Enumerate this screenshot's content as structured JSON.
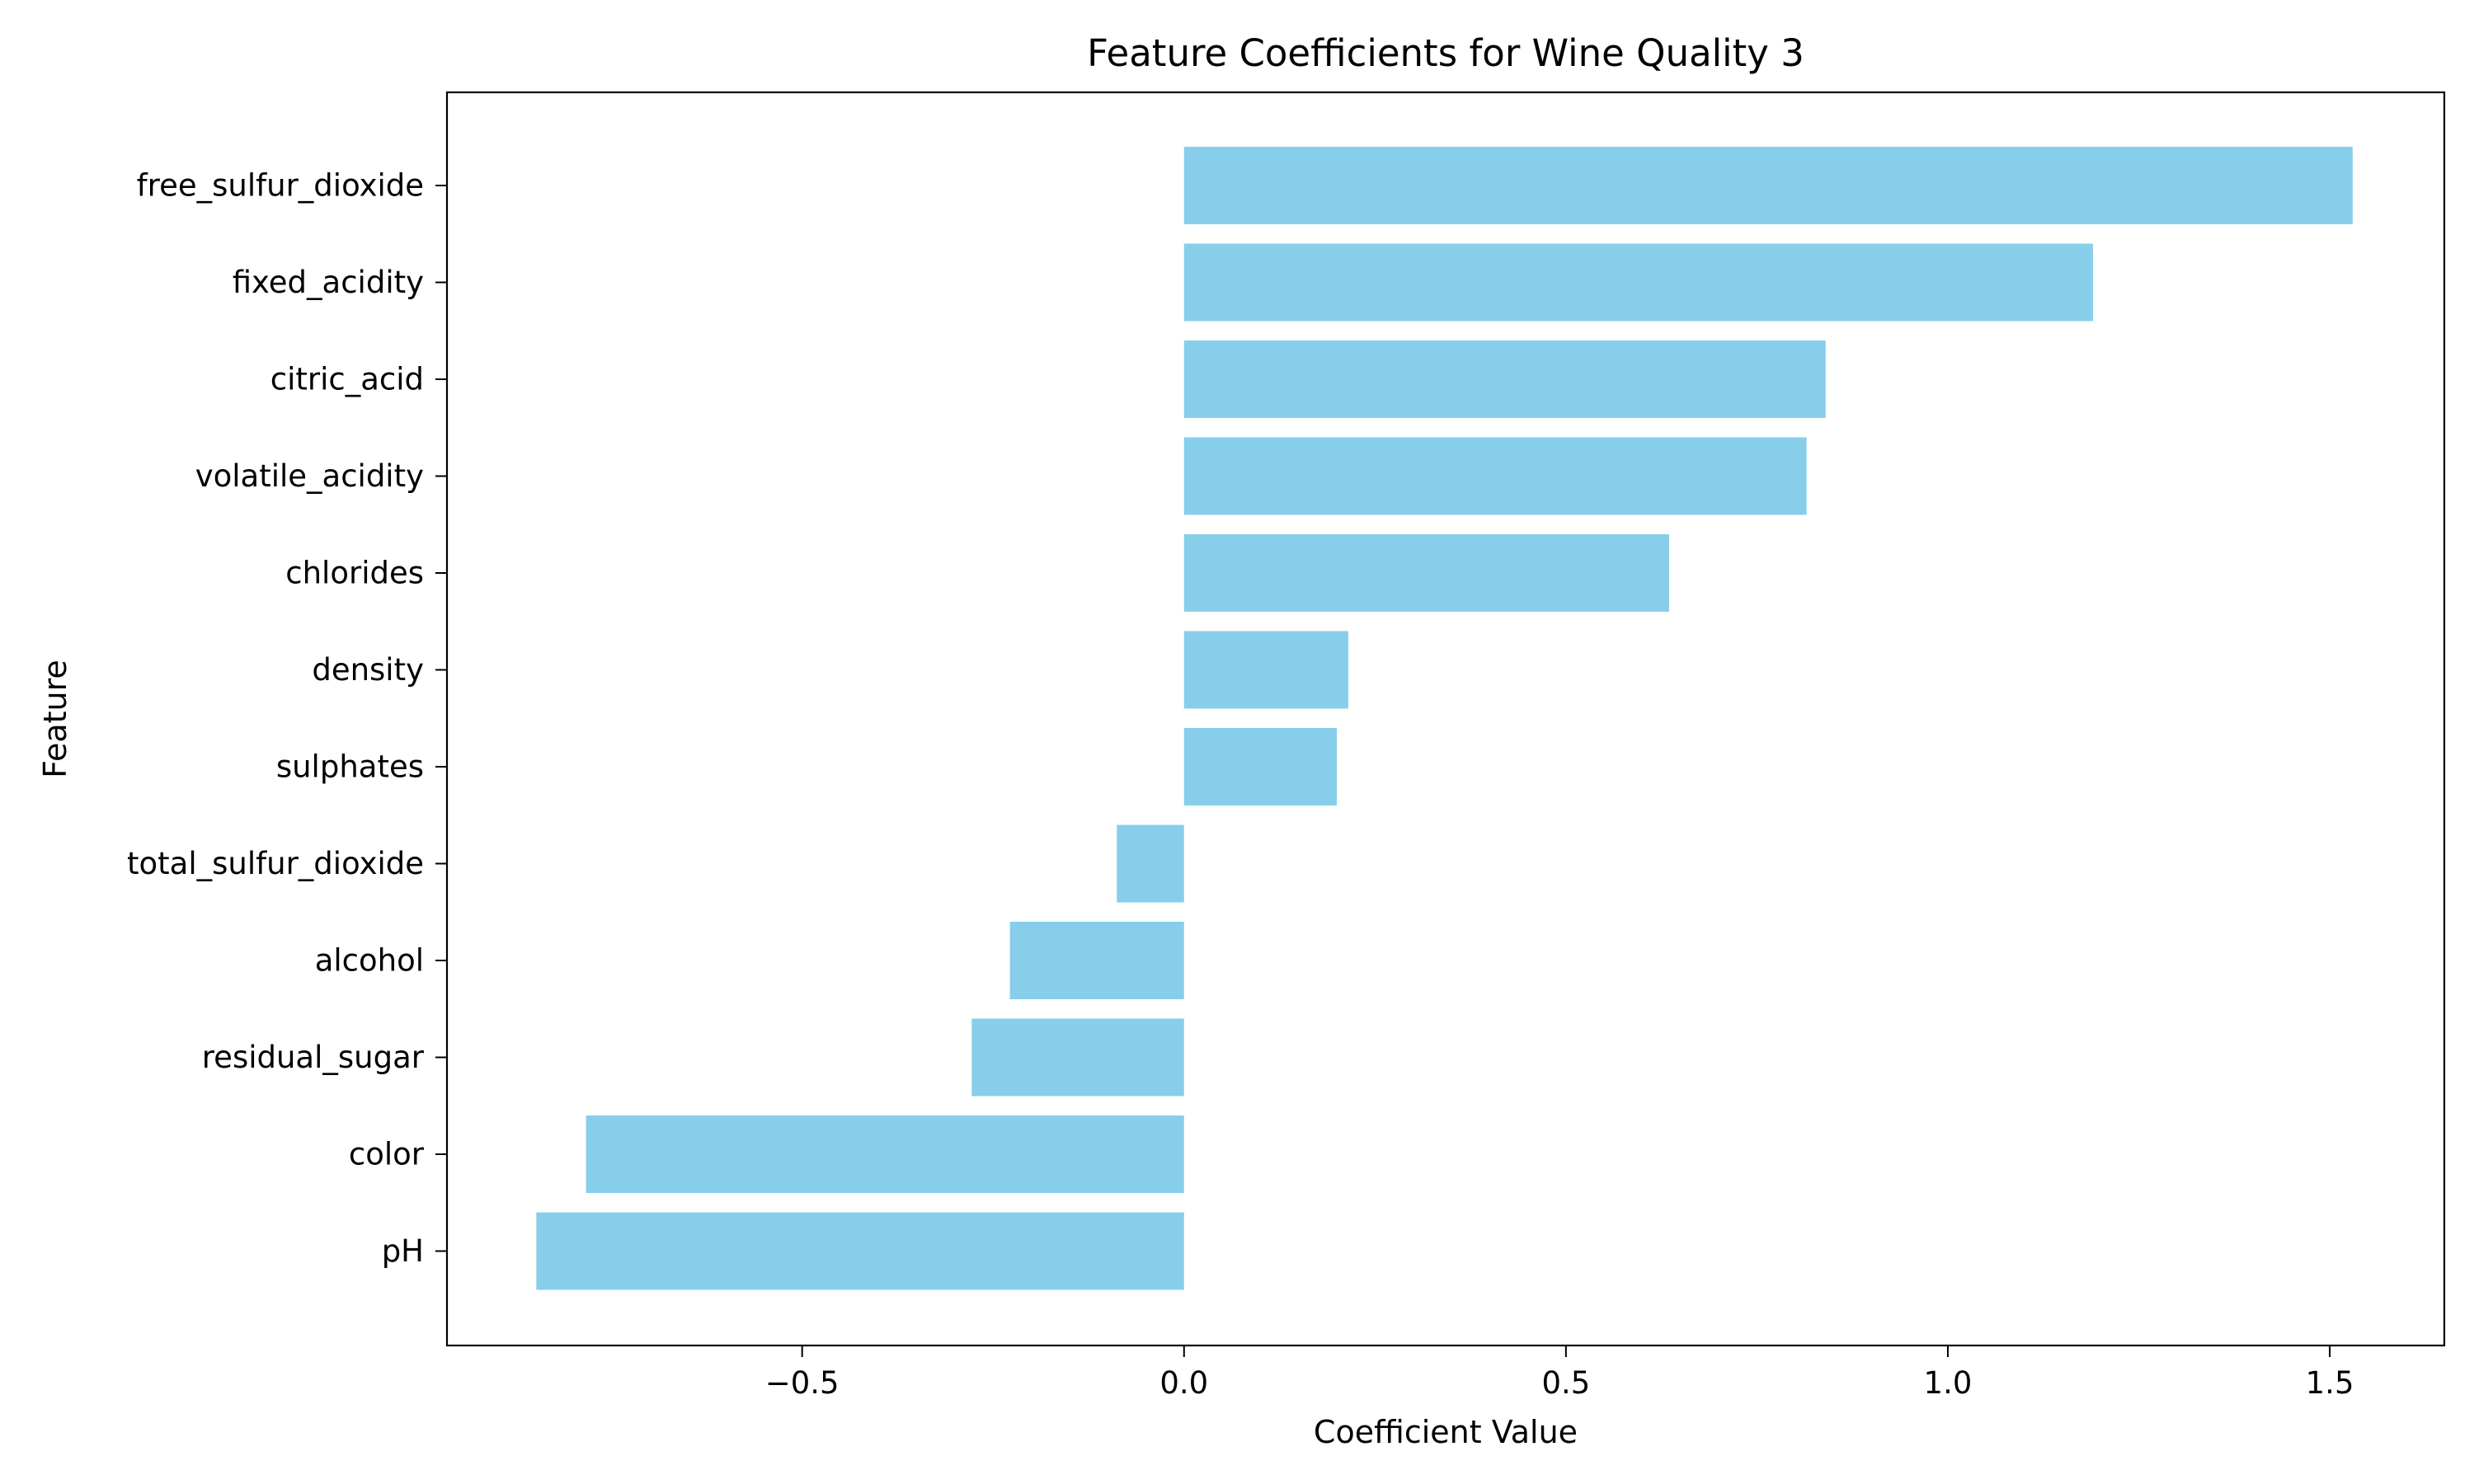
{
  "chart_data": {
    "type": "bar",
    "orientation": "horizontal",
    "title": "Feature Coefficients for Wine Quality 3",
    "xlabel": "Coefficient Value",
    "ylabel": "Feature",
    "categories": [
      "free_sulfur_dioxide",
      "fixed_acidity",
      "citric_acid",
      "volatile_acidity",
      "chlorides",
      "density",
      "sulphates",
      "total_sulfur_dioxide",
      "alcohol",
      "residual_sugar",
      "color",
      "pH"
    ],
    "values": [
      1.53,
      1.19,
      0.84,
      0.815,
      0.635,
      0.215,
      0.2,
      -0.088,
      -0.228,
      -0.278,
      -0.783,
      -0.848
    ],
    "xlim": [
      -0.965,
      1.65
    ],
    "xticks": [
      -0.5,
      0.0,
      0.5,
      1.0,
      1.5
    ],
    "xtick_labels": [
      "−0.5",
      "0.0",
      "0.5",
      "1.0",
      "1.5"
    ],
    "bar_color": "#87CEEB",
    "grid": false,
    "legend": "none"
  }
}
